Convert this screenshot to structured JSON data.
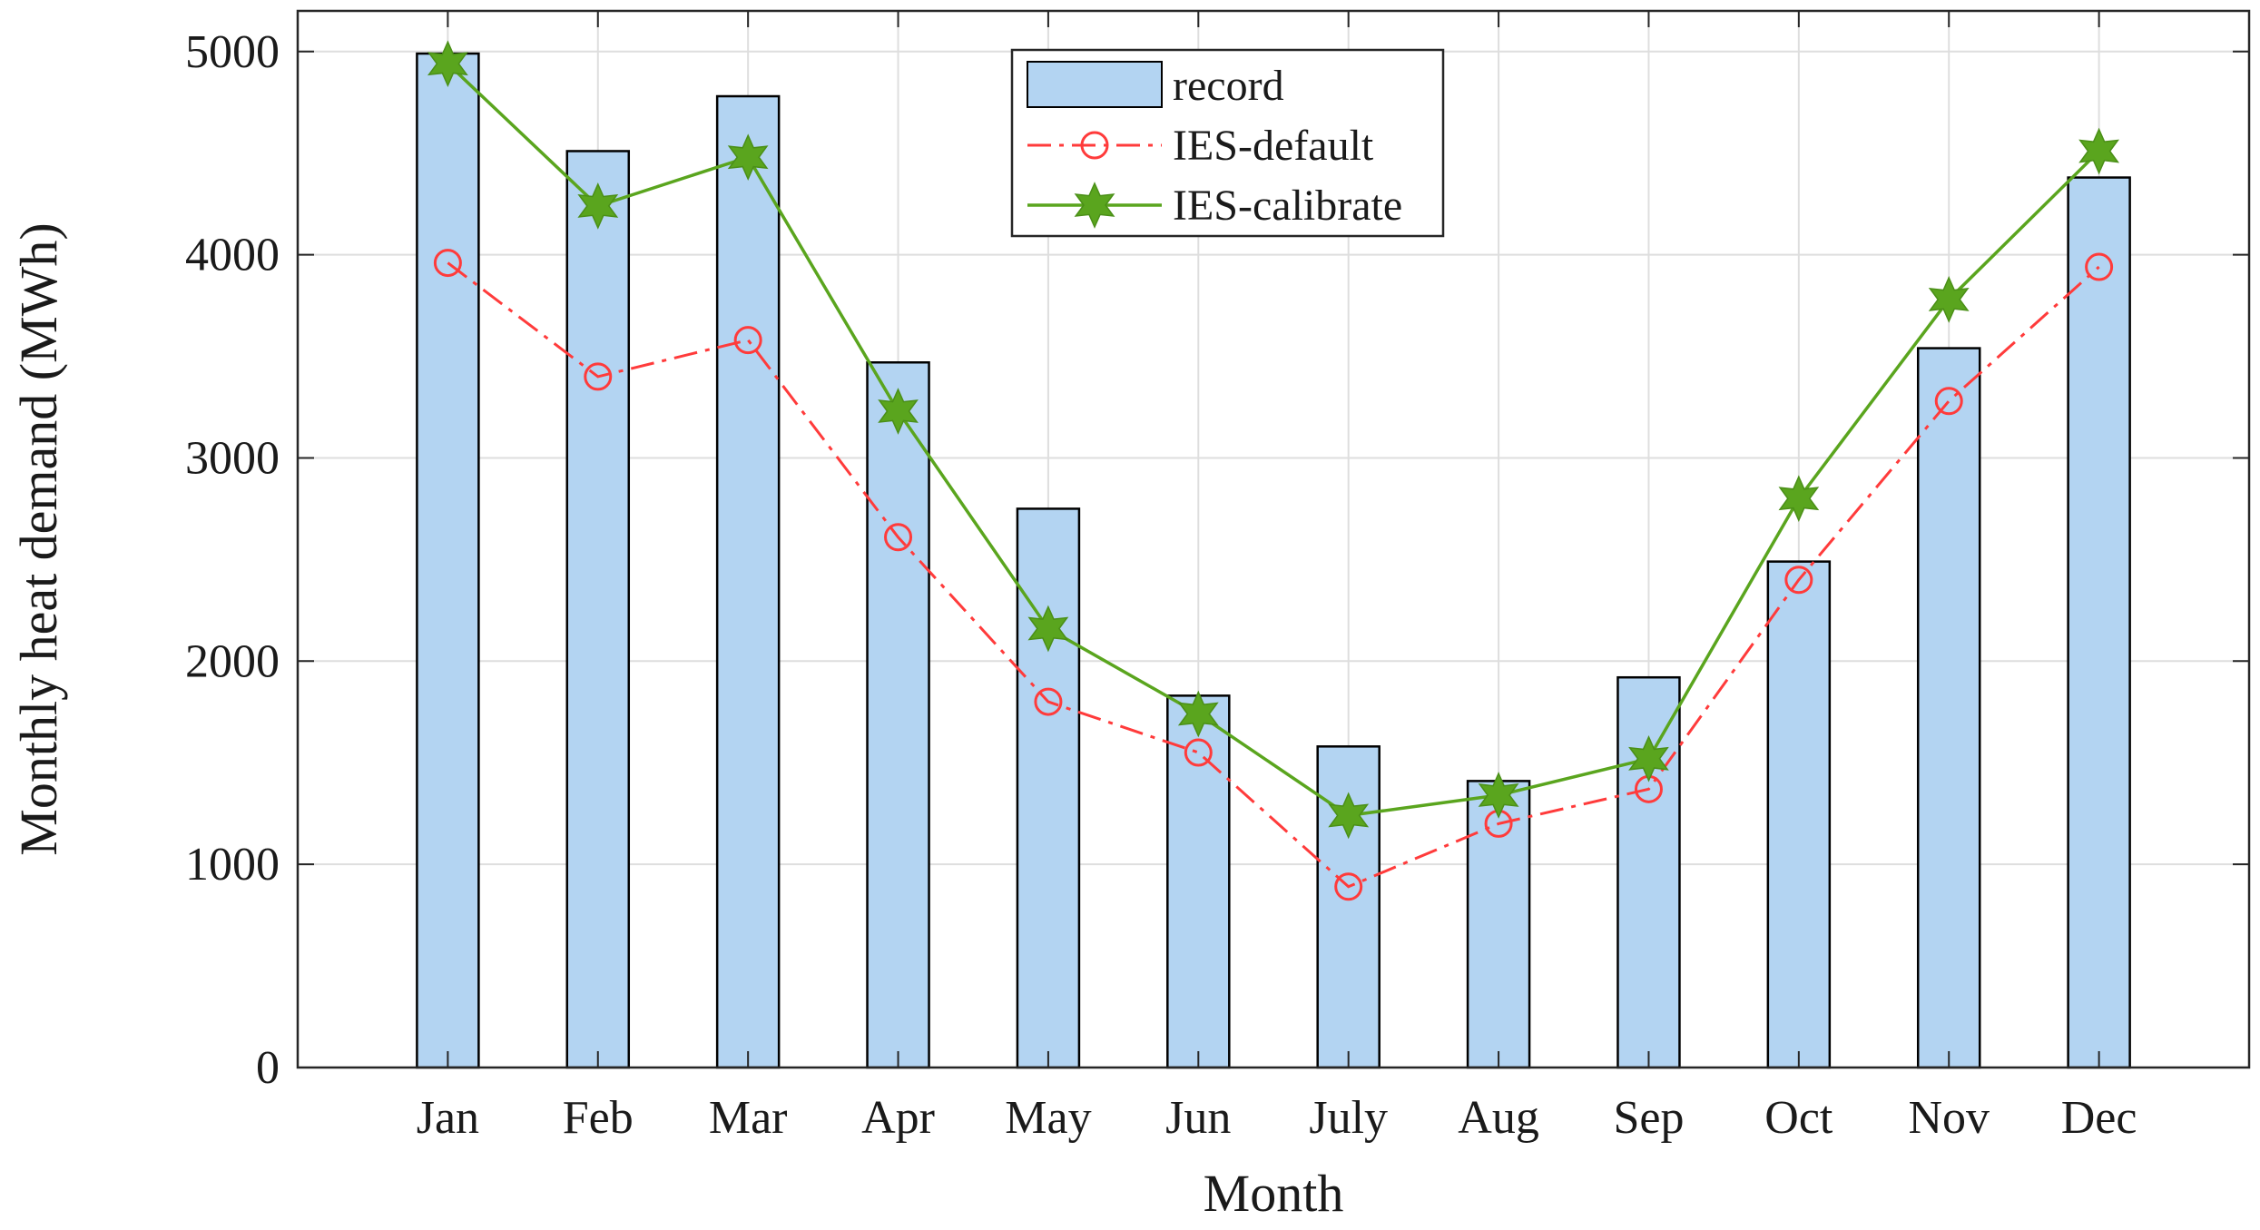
{
  "chart_data": {
    "type": "bar",
    "title": "",
    "xlabel": "Month",
    "ylabel": "Monthly heat demand (MWh)",
    "ylim": [
      0,
      5200
    ],
    "yticks": [
      0,
      1000,
      2000,
      3000,
      4000,
      5000
    ],
    "grid": true,
    "legend_position": "top-center",
    "categories": [
      "Jan",
      "Feb",
      "Mar",
      "Apr",
      "May",
      "Jun",
      "July",
      "Aug",
      "Sep",
      "Oct",
      "Nov",
      "Dec"
    ],
    "series": [
      {
        "name": "record",
        "kind": "bar",
        "color": "#b3d4f2",
        "edge_color": "#000000",
        "values": [
          4990,
          4510,
          4780,
          3470,
          2750,
          1830,
          1580,
          1410,
          1920,
          2490,
          3540,
          4380
        ]
      },
      {
        "name": "IES-default",
        "kind": "line",
        "color": "#ff3b3b",
        "line_style": "dash-dot",
        "marker": "circle",
        "values": [
          3960,
          3400,
          3580,
          2610,
          1800,
          1550,
          890,
          1200,
          1370,
          2400,
          3280,
          3940
        ]
      },
      {
        "name": "IES-calibrate",
        "kind": "line",
        "color": "#5aa51e",
        "line_style": "solid",
        "marker": "hexagram",
        "values": [
          4940,
          4240,
          4480,
          3230,
          2160,
          1740,
          1240,
          1340,
          1520,
          2800,
          3780,
          4510
        ]
      }
    ]
  }
}
